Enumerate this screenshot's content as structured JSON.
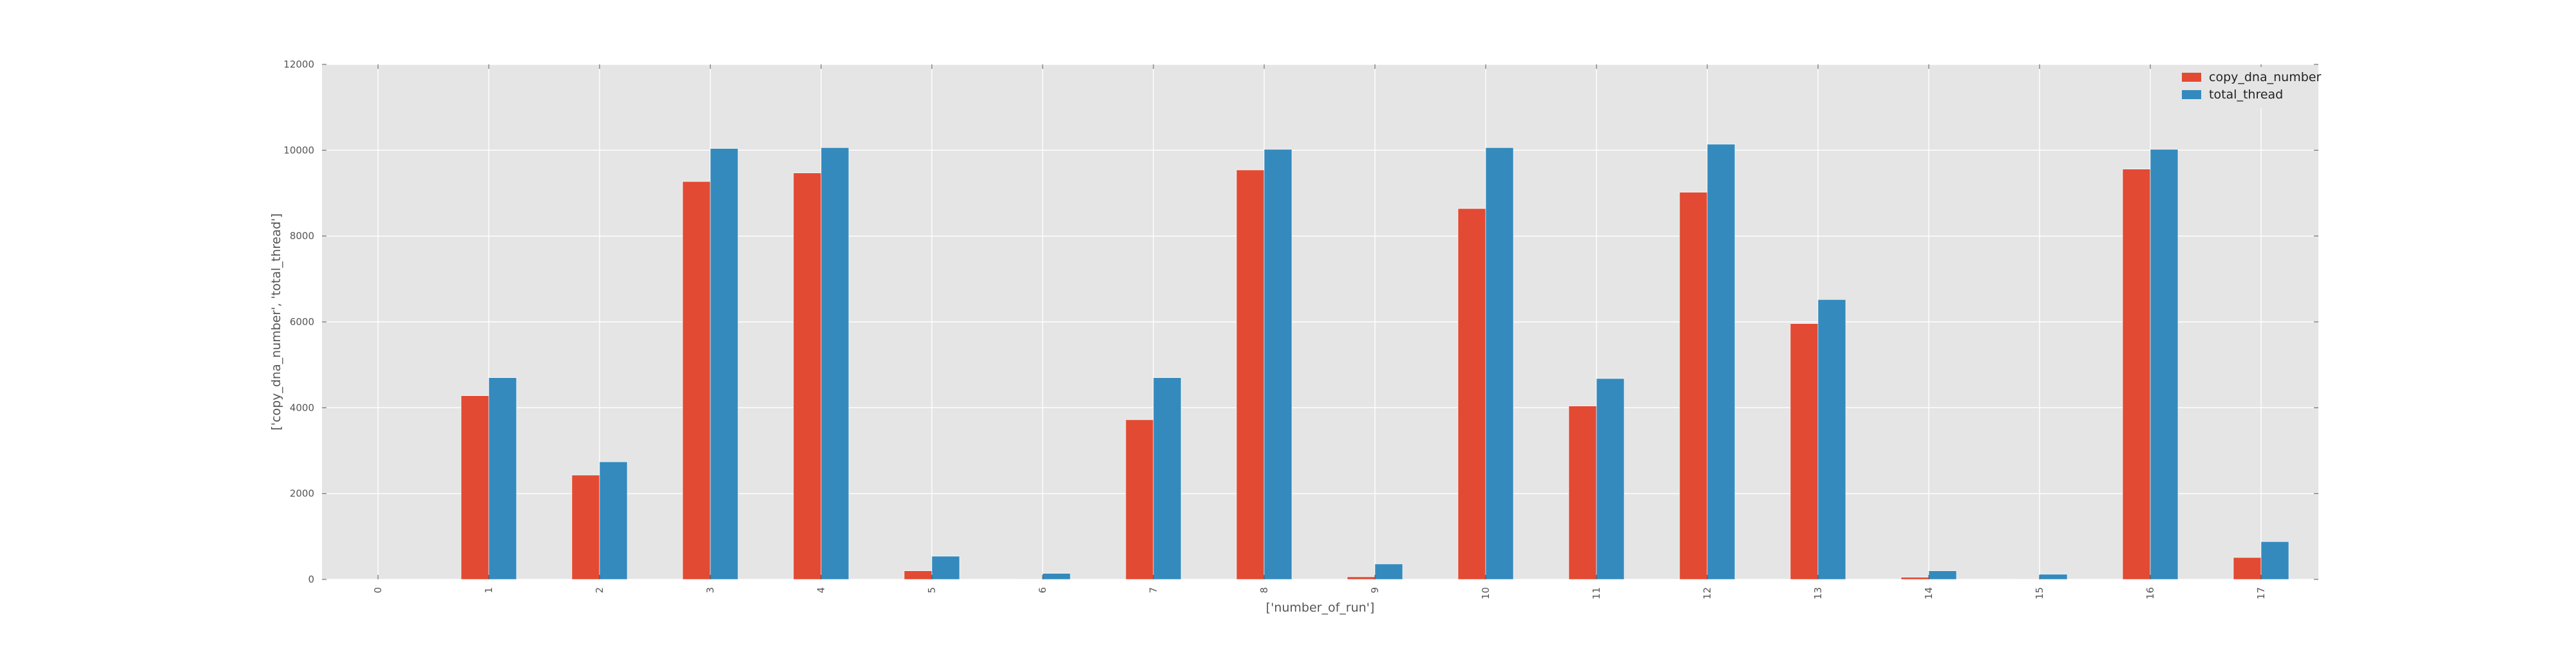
{
  "chart_data": {
    "type": "bar",
    "title": "",
    "xlabel": "['number_of_run']",
    "ylabel": "['copy_dna_number', 'total_thread']",
    "categories": [
      "0",
      "1",
      "2",
      "3",
      "4",
      "5",
      "6",
      "7",
      "8",
      "9",
      "10",
      "11",
      "12",
      "13",
      "14",
      "15",
      "16",
      "17"
    ],
    "series": [
      {
        "name": "copy_dna_number",
        "color": "#E24A33",
        "values": [
          0,
          4280,
          2430,
          9270,
          9470,
          200,
          10,
          3720,
          9540,
          60,
          8640,
          4040,
          9020,
          5960,
          50,
          10,
          9560,
          510
        ]
      },
      {
        "name": "total_thread",
        "color": "#348ABD",
        "values": [
          0,
          4700,
          2740,
          10040,
          10060,
          540,
          140,
          4700,
          10020,
          360,
          10060,
          4680,
          10140,
          6520,
          200,
          120,
          10020,
          880
        ]
      }
    ],
    "yticks": [
      "0",
      "2000",
      "4000",
      "6000",
      "8000",
      "10000",
      "12000"
    ],
    "ylim": [
      0,
      12000
    ],
    "grid": true,
    "legend": "top-right",
    "background": "#E5E5E5",
    "gridcolor": "#FFFFFF"
  }
}
